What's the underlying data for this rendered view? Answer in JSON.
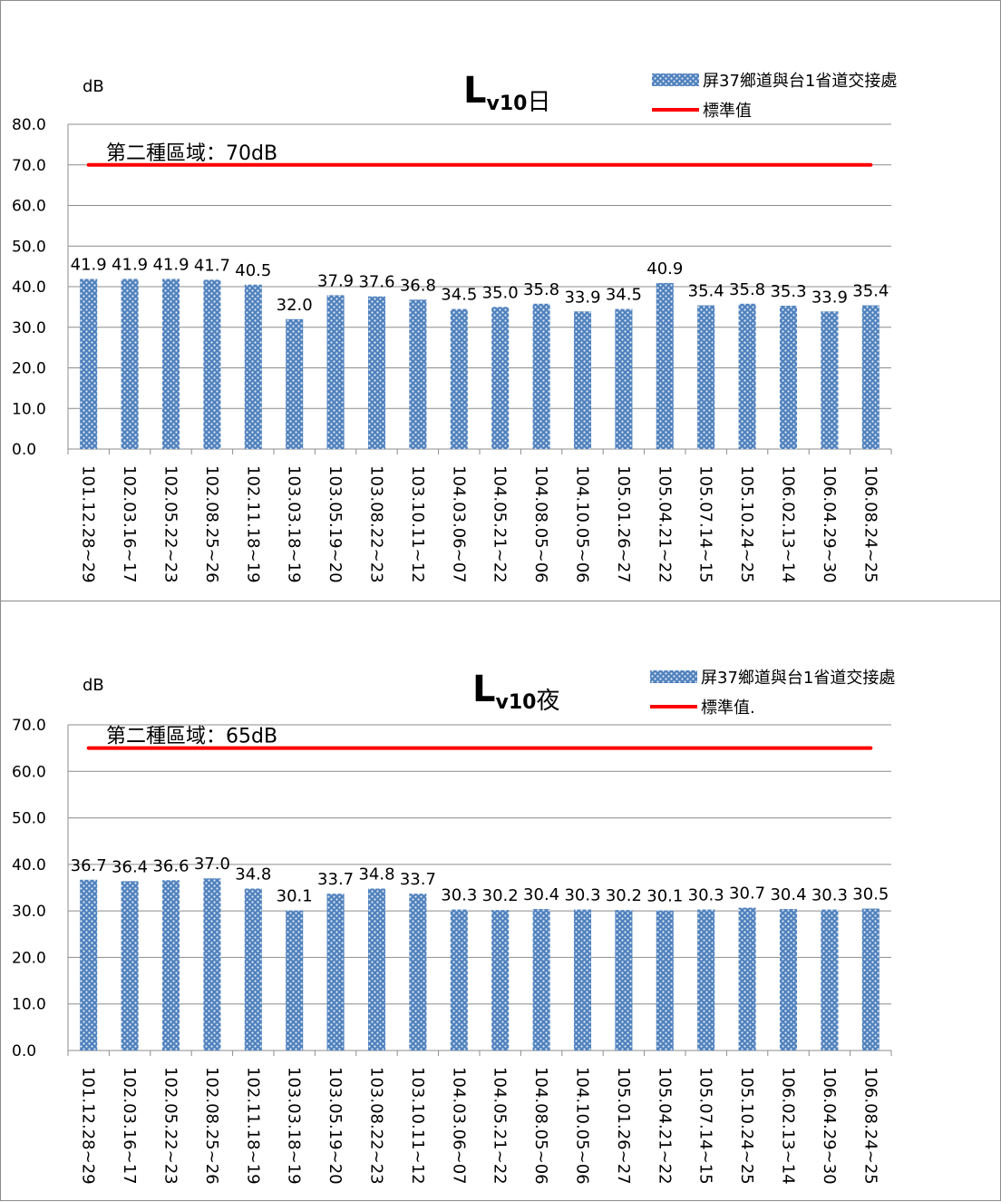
{
  "chart_data": [
    {
      "type": "bar",
      "title_main": "L",
      "title_sub": "v10",
      "title_suffix": "日",
      "ylabel": "dB",
      "ylim": [
        0,
        80
      ],
      "yticks": [
        "0.0",
        "10.0",
        "20.0",
        "30.0",
        "40.0",
        "50.0",
        "60.0",
        "70.0",
        "80.0"
      ],
      "grid": true,
      "legend_position": "top-right",
      "categories": [
        "101.12.28~29",
        "102.03.16~17",
        "102.05.22~23",
        "102.08.25~26",
        "102.11.18~19",
        "103.03.18~19",
        "103.05.19~20",
        "103.08.22~23",
        "103.10.11~12",
        "104.03.06~07",
        "104.05.21~22",
        "104.08.05~06",
        "104.10.05~06",
        "105.01.26~27",
        "105.04.21~22",
        "105.07.14~15",
        "105.10.24~25",
        "106.02.13~14",
        "106.04.29~30",
        "106.08.24~25"
      ],
      "series": [
        {
          "name": "屏37鄉道與台1省道交接處",
          "type": "bar",
          "color": "#4f81bd",
          "values": [
            41.9,
            41.9,
            41.9,
            41.7,
            40.5,
            32.0,
            37.9,
            37.6,
            36.8,
            34.5,
            35.0,
            35.8,
            33.9,
            34.5,
            40.9,
            35.4,
            35.8,
            35.3,
            33.9,
            35.4
          ],
          "labels": [
            "41.9",
            "41.9",
            "41.9",
            "41.7",
            "40.5",
            "32.0",
            "37.9",
            "37.6",
            "36.8",
            "34.5",
            "35.0",
            "35.8",
            "33.9",
            "34.5",
            "40.9",
            "35.4",
            "35.8",
            "35.3",
            "33.9",
            "35.4"
          ]
        },
        {
          "name": "標準值",
          "type": "line",
          "color": "#ff0000",
          "value": 70
        }
      ],
      "annotation": "第二種區域：70dB"
    },
    {
      "type": "bar",
      "title_main": "L",
      "title_sub": "v10",
      "title_suffix": "夜",
      "ylabel": "dB",
      "ylim": [
        0,
        70
      ],
      "yticks": [
        "0.0",
        "10.0",
        "20.0",
        "30.0",
        "40.0",
        "50.0",
        "60.0",
        "70.0"
      ],
      "grid": true,
      "legend_position": "top-right",
      "categories": [
        "101.12.28~29",
        "102.03.16~17",
        "102.05.22~23",
        "102.08.25~26",
        "102.11.18~19",
        "103.03.18~19",
        "103.05.19~20",
        "103.08.22~23",
        "103.10.11~12",
        "104.03.06~07",
        "104.05.21~22",
        "104.08.05~06",
        "104.10.05~06",
        "105.01.26~27",
        "105.04.21~22",
        "105.07.14~15",
        "105.10.24~25",
        "106.02.13~14",
        "106.04.29~30",
        "106.08.24~25"
      ],
      "series": [
        {
          "name": "屏37鄉道與台1省道交接處",
          "type": "bar",
          "color": "#4f81bd",
          "values": [
            36.7,
            36.4,
            36.6,
            37.0,
            34.8,
            30.1,
            33.7,
            34.8,
            33.7,
            30.3,
            30.2,
            30.4,
            30.3,
            30.2,
            30.1,
            30.3,
            30.7,
            30.4,
            30.3,
            30.5
          ],
          "labels": [
            "36.7",
            "36.4",
            "36.6",
            "37.0",
            "34.8",
            "30.1",
            "33.7",
            "34.8",
            "33.7",
            "30.3",
            "30.2",
            "30.4",
            "30.3",
            "30.2",
            "30.1",
            "30.3",
            "30.7",
            "30.4",
            "30.3",
            "30.5"
          ]
        },
        {
          "name": "標準值.",
          "type": "line",
          "color": "#ff0000",
          "value": 65
        }
      ],
      "annotation": "第二種區域：65dB"
    }
  ]
}
